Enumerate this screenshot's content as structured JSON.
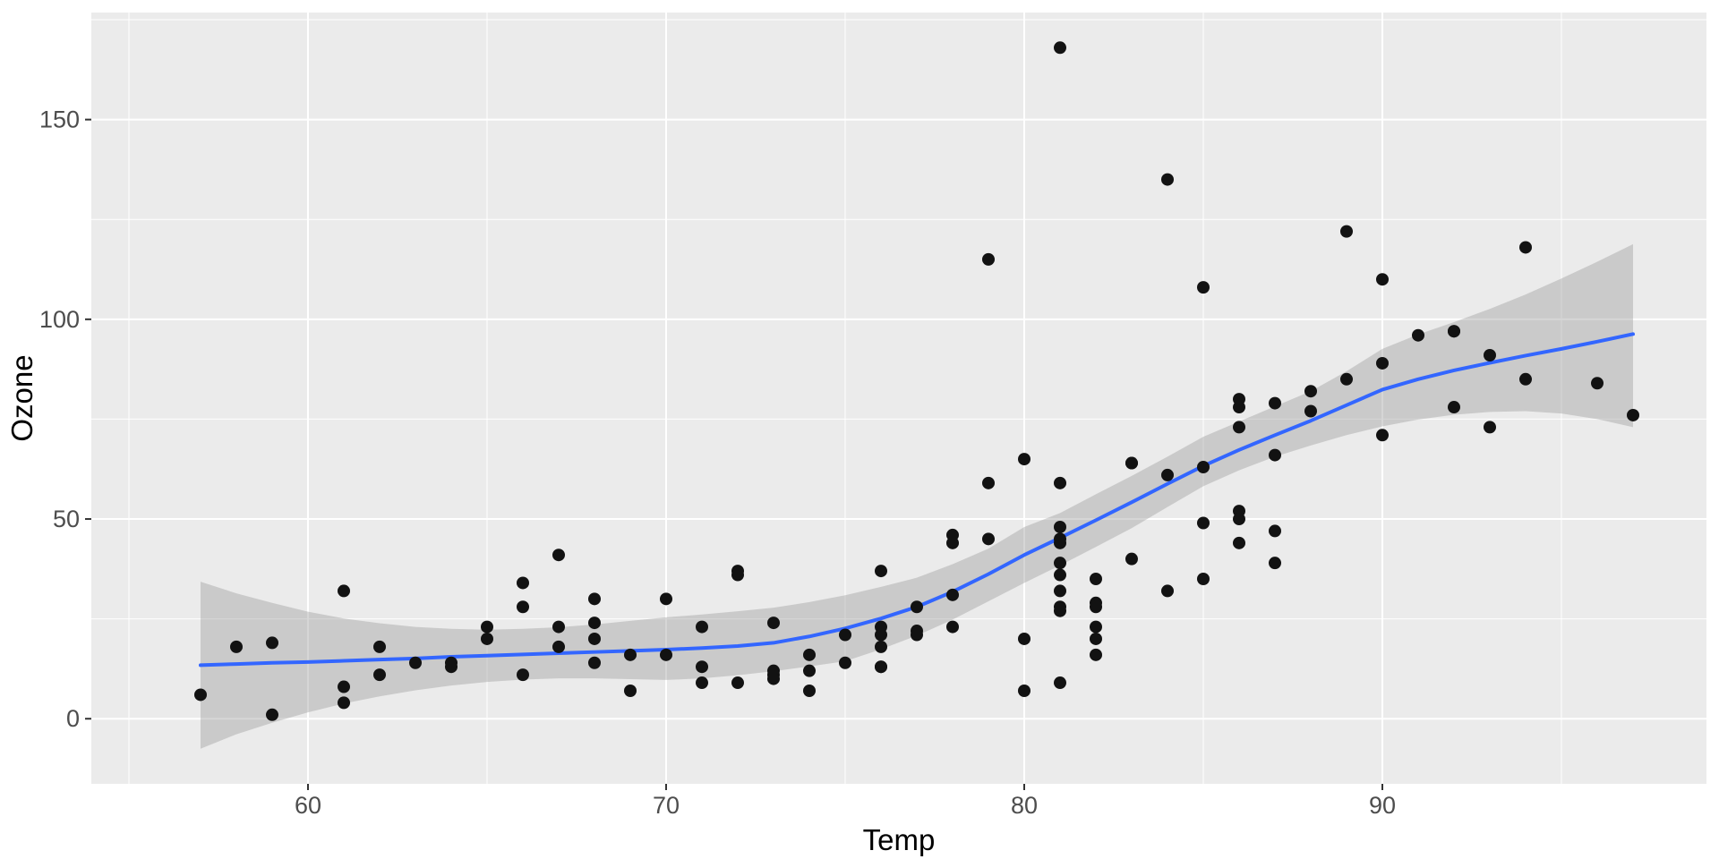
{
  "chart_data": {
    "type": "scatter",
    "title": "",
    "xlabel": "Temp",
    "ylabel": "Ozone",
    "legend_position": "none",
    "grid": true,
    "x_axis": {
      "lim": [
        53.95,
        99.05
      ],
      "major_ticks": [
        60,
        70,
        80,
        90
      ],
      "minor_ticks": [
        55,
        65,
        75,
        85,
        95
      ]
    },
    "y_axis": {
      "lim": [
        -16.3,
        176.8
      ],
      "major_ticks": [
        0,
        50,
        100,
        150
      ],
      "minor_ticks": [
        25,
        75,
        125,
        175
      ]
    },
    "points": [
      [
        67,
        41
      ],
      [
        72,
        36
      ],
      [
        74,
        12
      ],
      [
        62,
        18
      ],
      [
        66,
        28
      ],
      [
        65,
        23
      ],
      [
        59,
        19
      ],
      [
        61,
        8
      ],
      [
        74,
        7
      ],
      [
        69,
        16
      ],
      [
        66,
        11
      ],
      [
        68,
        14
      ],
      [
        58,
        18
      ],
      [
        64,
        14
      ],
      [
        66,
        34
      ],
      [
        57,
        6
      ],
      [
        68,
        30
      ],
      [
        62,
        11
      ],
      [
        59,
        1
      ],
      [
        73,
        11
      ],
      [
        61,
        4
      ],
      [
        61,
        32
      ],
      [
        67,
        23
      ],
      [
        81,
        45
      ],
      [
        79,
        115
      ],
      [
        76,
        37
      ],
      [
        82,
        29
      ],
      [
        90,
        71
      ],
      [
        87,
        39
      ],
      [
        82,
        23
      ],
      [
        77,
        21
      ],
      [
        72,
        37
      ],
      [
        65,
        20
      ],
      [
        73,
        12
      ],
      [
        76,
        13
      ],
      [
        84,
        135
      ],
      [
        85,
        49
      ],
      [
        81,
        32
      ],
      [
        83,
        64
      ],
      [
        83,
        40
      ],
      [
        88,
        77
      ],
      [
        92,
        97
      ],
      [
        92,
        97
      ],
      [
        89,
        85
      ],
      [
        73,
        10
      ],
      [
        81,
        27
      ],
      [
        80,
        7
      ],
      [
        81,
        48
      ],
      [
        82,
        35
      ],
      [
        84,
        61
      ],
      [
        87,
        79
      ],
      [
        85,
        63
      ],
      [
        74,
        16
      ],
      [
        86,
        80
      ],
      [
        85,
        108
      ],
      [
        82,
        20
      ],
      [
        86,
        52
      ],
      [
        88,
        82
      ],
      [
        86,
        50
      ],
      [
        83,
        64
      ],
      [
        81,
        59
      ],
      [
        81,
        39
      ],
      [
        81,
        9
      ],
      [
        82,
        16
      ],
      [
        86,
        78
      ],
      [
        85,
        35
      ],
      [
        87,
        66
      ],
      [
        89,
        122
      ],
      [
        90,
        89
      ],
      [
        90,
        110
      ],
      [
        86,
        44
      ],
      [
        82,
        28
      ],
      [
        80,
        65
      ],
      [
        77,
        22
      ],
      [
        79,
        59
      ],
      [
        76,
        23
      ],
      [
        78,
        31
      ],
      [
        78,
        44
      ],
      [
        77,
        28
      ],
      [
        72,
        9
      ],
      [
        79,
        45
      ],
      [
        81,
        168
      ],
      [
        86,
        73
      ],
      [
        97,
        76
      ],
      [
        94,
        118
      ],
      [
        96,
        84
      ],
      [
        94,
        85
      ],
      [
        91,
        96
      ],
      [
        92,
        78
      ],
      [
        93,
        73
      ],
      [
        93,
        91
      ],
      [
        87,
        47
      ],
      [
        84,
        32
      ],
      [
        80,
        20
      ],
      [
        78,
        23
      ],
      [
        75,
        21
      ],
      [
        73,
        24
      ],
      [
        81,
        44
      ],
      [
        76,
        21
      ],
      [
        81,
        28
      ],
      [
        71,
        9
      ],
      [
        71,
        13
      ],
      [
        78,
        46
      ],
      [
        67,
        18
      ],
      [
        68,
        24
      ],
      [
        70,
        16
      ],
      [
        64,
        13
      ],
      [
        71,
        23
      ],
      [
        81,
        36
      ],
      [
        69,
        7
      ],
      [
        63,
        14
      ],
      [
        70,
        30
      ],
      [
        75,
        14
      ],
      [
        76,
        18
      ],
      [
        68,
        20
      ],
      [
        76,
        13
      ]
    ],
    "smooth_line": {
      "method": "loess",
      "color": "#3366FF",
      "width": 4,
      "path": [
        [
          57,
          13.4
        ],
        [
          58,
          13.7
        ],
        [
          59,
          14.0
        ],
        [
          60,
          14.2
        ],
        [
          61,
          14.5
        ],
        [
          62,
          14.8
        ],
        [
          63,
          15.1
        ],
        [
          64,
          15.5
        ],
        [
          65,
          15.8
        ],
        [
          66,
          16.1
        ],
        [
          67,
          16.4
        ],
        [
          68,
          16.7
        ],
        [
          69,
          17.0
        ],
        [
          70,
          17.3
        ],
        [
          71,
          17.7
        ],
        [
          72,
          18.2
        ],
        [
          73,
          19.0
        ],
        [
          74,
          20.6
        ],
        [
          75,
          22.6
        ],
        [
          76,
          25.1
        ],
        [
          77,
          28.0
        ],
        [
          78,
          31.8
        ],
        [
          79,
          36.2
        ],
        [
          80,
          41.0
        ],
        [
          81,
          45.3
        ],
        [
          82,
          49.7
        ],
        [
          83,
          54.2
        ],
        [
          84,
          58.8
        ],
        [
          85,
          63.3
        ],
        [
          86,
          67.3
        ],
        [
          87,
          71.0
        ],
        [
          88,
          74.6
        ],
        [
          89,
          78.5
        ],
        [
          90,
          82.4
        ],
        [
          91,
          85.0
        ],
        [
          92,
          87.2
        ],
        [
          93,
          89.1
        ],
        [
          94,
          90.9
        ],
        [
          95,
          92.6
        ],
        [
          96,
          94.4
        ],
        [
          97,
          96.3
        ]
      ]
    },
    "ribbon": {
      "fill": "#999999",
      "opacity": 0.4,
      "path": [
        [
          57,
          -7.5,
          34.3
        ],
        [
          58,
          -3.9,
          31.4
        ],
        [
          59,
          -1.0,
          29.0
        ],
        [
          60,
          1.6,
          26.8
        ],
        [
          61,
          3.8,
          25.1
        ],
        [
          62,
          5.6,
          23.9
        ],
        [
          63,
          7.1,
          23.0
        ],
        [
          64,
          8.3,
          22.5
        ],
        [
          65,
          9.2,
          22.3
        ],
        [
          66,
          9.8,
          22.5
        ],
        [
          67,
          10.1,
          22.9
        ],
        [
          68,
          10.1,
          23.6
        ],
        [
          69,
          9.9,
          24.5
        ],
        [
          70,
          9.7,
          25.4
        ],
        [
          71,
          10.1,
          26.1
        ],
        [
          72,
          10.9,
          26.9
        ],
        [
          73,
          11.9,
          27.8
        ],
        [
          74,
          13.1,
          29.2
        ],
        [
          75,
          14.4,
          30.9
        ],
        [
          76,
          17.4,
          33.0
        ],
        [
          77,
          20.8,
          35.3
        ],
        [
          78,
          24.8,
          38.7
        ],
        [
          79,
          29.4,
          42.6
        ],
        [
          80,
          34.0,
          48.0
        ],
        [
          81,
          38.4,
          51.5
        ],
        [
          82,
          43.0,
          56.2
        ],
        [
          83,
          47.7,
          60.8
        ],
        [
          84,
          53.0,
          65.6
        ],
        [
          85,
          58.2,
          70.6
        ],
        [
          86,
          62.2,
          74.4
        ],
        [
          87,
          65.6,
          78.2
        ],
        [
          88,
          68.4,
          82.0
        ],
        [
          89,
          71.0,
          87.0
        ],
        [
          90,
          73.2,
          92.6
        ],
        [
          91,
          74.9,
          96.2
        ],
        [
          92,
          76.1,
          99.3
        ],
        [
          93,
          76.8,
          102.6
        ],
        [
          94,
          77.0,
          106.2
        ],
        [
          95,
          76.4,
          110.2
        ],
        [
          96,
          75.0,
          114.4
        ],
        [
          97,
          73.0,
          118.8
        ]
      ]
    },
    "style": {
      "panel_bg": "#EBEBEB",
      "grid_color": "#FFFFFF",
      "point_color": "#121212",
      "point_radius": 7,
      "tick_color": "#333333",
      "tick_label_color": "#4D4D4D",
      "axis_title_color": "#000000"
    }
  }
}
